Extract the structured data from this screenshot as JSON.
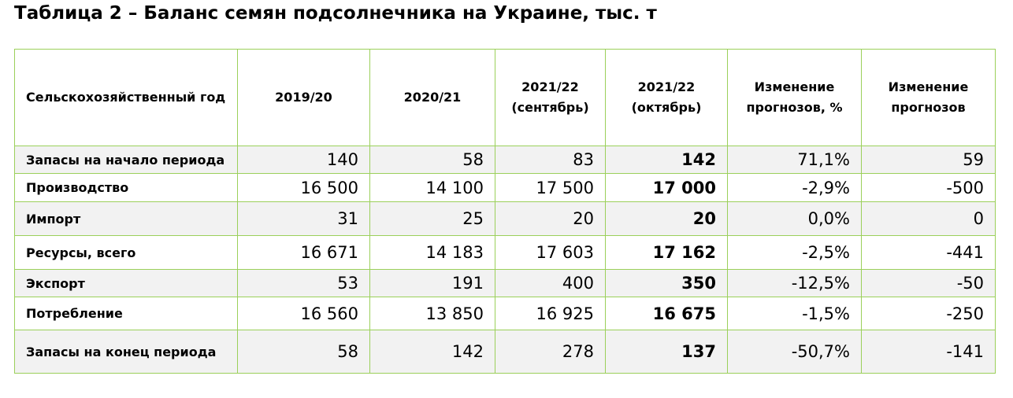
{
  "header": {
    "title": "Таблица 2 – Баланс семян подсолнечника на Украине, тыс. т"
  },
  "table": {
    "columns": [
      "Сельскохозяйственный год",
      "2019/20",
      "2020/21",
      "2021/22 (сентябрь)",
      "2021/22 (октябрь)",
      "Изменение прогнозов, %",
      "Изменение прогнозов"
    ],
    "rows": [
      [
        "Запасы на начало периода",
        "140",
        "58",
        "83",
        "142",
        "71,1%",
        "59"
      ],
      [
        "Производство",
        "16 500",
        "14 100",
        "17 500",
        "17 000",
        "-2,9%",
        "-500"
      ],
      [
        "Импорт",
        "31",
        "25",
        "20",
        "20",
        "0,0%",
        "0"
      ],
      [
        "Ресурсы, всего",
        "16 671",
        "14 183",
        "17 603",
        "17 162",
        "-2,5%",
        "-441"
      ],
      [
        "Экспорт",
        "53",
        "191",
        "400",
        "350",
        "-12,5%",
        "-50"
      ],
      [
        "Потребление",
        "16 560",
        "13 850",
        "16 925",
        "16 675",
        "-1,5%",
        "-250"
      ],
      [
        "Запасы на конец периода",
        "58",
        "142",
        "278",
        "137",
        "-50,7%",
        "-141"
      ]
    ]
  }
}
